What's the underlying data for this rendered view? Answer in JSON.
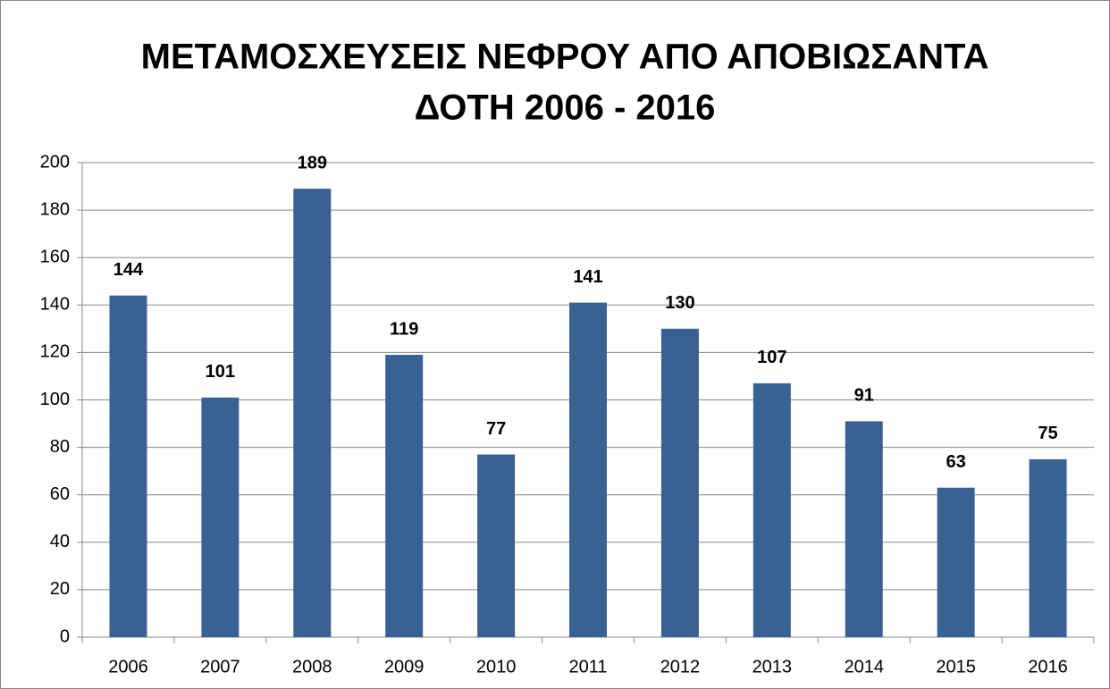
{
  "chart_data": {
    "type": "bar",
    "title": [
      "ΜΕΤΑΜΟΣΧΕΥΣΕΙΣ ΝΕΦΡΟΥ ΑΠΟ ΑΠΟΒΙΩΣΑΝΤΑ",
      "ΔΟΤΗ 2006 - 2016"
    ],
    "categories": [
      "2006",
      "2007",
      "2008",
      "2009",
      "2010",
      "2011",
      "2012",
      "2013",
      "2014",
      "2015",
      "2016"
    ],
    "values": [
      144,
      101,
      189,
      119,
      77,
      141,
      130,
      107,
      91,
      63,
      75
    ],
    "color": "#3a6194",
    "ylim": [
      0,
      200
    ],
    "yticks": [
      0,
      20,
      40,
      60,
      80,
      100,
      120,
      140,
      160,
      180,
      200
    ],
    "grid": true
  }
}
